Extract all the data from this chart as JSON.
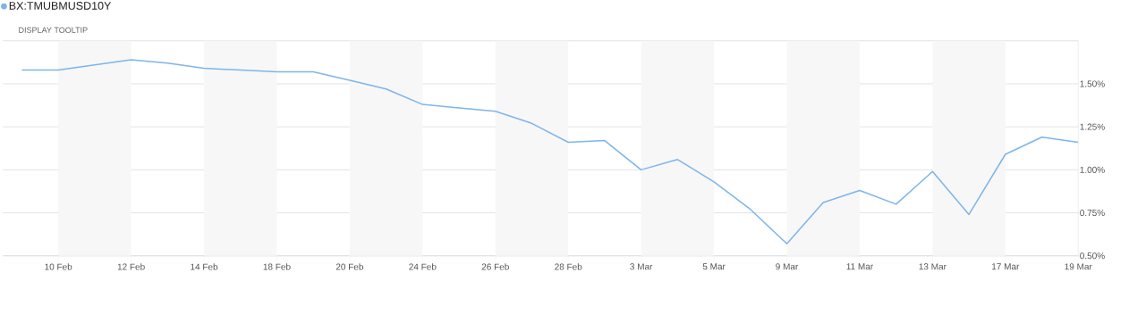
{
  "chart_data": {
    "type": "line",
    "categories": [
      null,
      "10 Feb",
      null,
      "12 Feb",
      null,
      "14 Feb",
      null,
      "18 Feb",
      null,
      "20 Feb",
      null,
      "24 Feb",
      null,
      "26 Feb",
      null,
      "28 Feb",
      null,
      "3 Mar",
      null,
      "5 Mar",
      null,
      "9 Mar",
      null,
      "11 Mar",
      null,
      "13 Mar",
      null,
      "17 Mar",
      null,
      "19 Mar"
    ],
    "series": [
      {
        "name": "BX:TMUBMUSD10Y",
        "color": "#7cb5ec",
        "values": [
          1.58,
          1.58,
          1.61,
          1.64,
          1.62,
          1.59,
          1.58,
          1.57,
          1.57,
          1.52,
          1.47,
          1.38,
          1.36,
          1.34,
          1.27,
          1.16,
          1.17,
          1.0,
          1.06,
          0.93,
          0.77,
          0.57,
          0.81,
          0.88,
          0.8,
          0.99,
          0.74,
          1.09,
          1.19,
          1.16
        ]
      }
    ],
    "ylim": [
      0.5,
      1.75
    ],
    "yticks": [
      {
        "value": 0.5,
        "label": "0.50%"
      },
      {
        "value": 0.75,
        "label": "0.75%"
      },
      {
        "value": 1.0,
        "label": "1.00%"
      },
      {
        "value": 1.25,
        "label": "1.25%"
      },
      {
        "value": 1.5,
        "label": "1.50%"
      },
      {
        "value": 1.75,
        "label": null
      }
    ],
    "bands": [
      {
        "axis": "x",
        "from": "10 Feb",
        "to": "12 Feb",
        "color": "#f7f7f7"
      },
      {
        "axis": "x",
        "from": "14 Feb",
        "to": "18 Feb",
        "color": "#f7f7f7"
      },
      {
        "axis": "x",
        "from": "20 Feb",
        "to": "24 Feb",
        "color": "#f7f7f7"
      },
      {
        "axis": "x",
        "from": "26 Feb",
        "to": "28 Feb",
        "color": "#f7f7f7"
      },
      {
        "axis": "x",
        "from": "3 Mar",
        "to": "5 Mar",
        "color": "#f7f7f7"
      },
      {
        "axis": "x",
        "from": "9 Mar",
        "to": "11 Mar",
        "color": "#f7f7f7"
      },
      {
        "axis": "x",
        "from": "13 Mar",
        "to": "17 Mar",
        "color": "#f7f7f7"
      }
    ],
    "annotations": [
      "DISPLAY TOOLTIP"
    ],
    "grid": "y",
    "legend": "top left",
    "marker": "none",
    "line_style": "solid"
  }
}
